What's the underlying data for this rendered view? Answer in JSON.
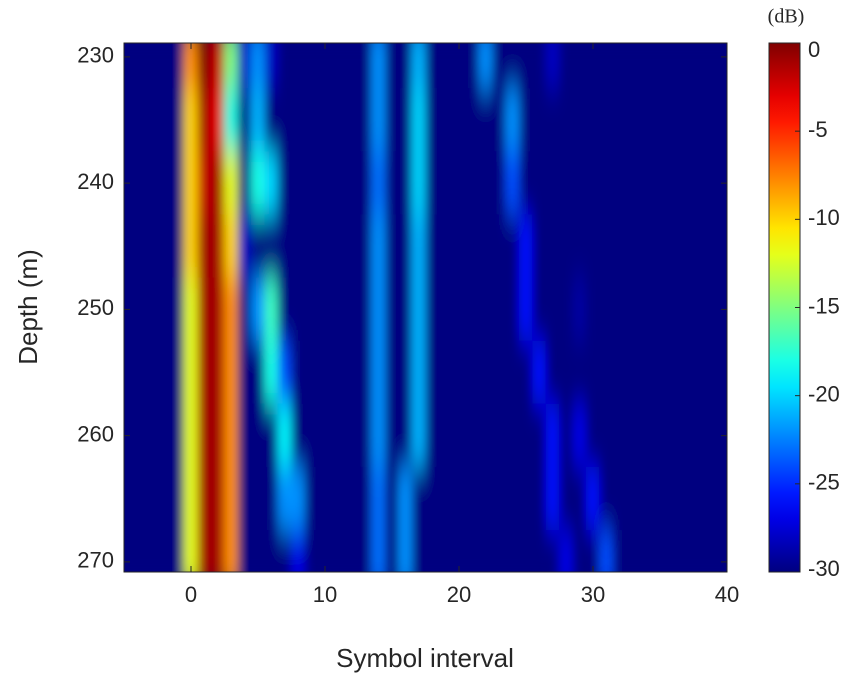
{
  "chart_data": {
    "type": "heatmap",
    "xlabel": "Symbol interval",
    "ylabel": "Depth (m)",
    "colorbar_label": "(dB)",
    "xlim": [
      -5,
      40
    ],
    "xticks": [
      0,
      10,
      20,
      30,
      40
    ],
    "ylim": [
      228.9,
      270.8
    ],
    "yticks": [
      230,
      240,
      250,
      260,
      270
    ],
    "y_reversed": true,
    "clim": [
      -30,
      0
    ],
    "cticks": [
      0,
      -5,
      -10,
      -15,
      -20,
      -25,
      -30
    ],
    "colormap": "jet",
    "x": [
      -5,
      -4,
      -3,
      -2,
      -1,
      0,
      1,
      2,
      3,
      4,
      5,
      6,
      7,
      8,
      9,
      10,
      11,
      12,
      13,
      14,
      15,
      16,
      17,
      18,
      19,
      20,
      21,
      22,
      23,
      24,
      25,
      26,
      27,
      28,
      29,
      30,
      31,
      32,
      33,
      34,
      35,
      36,
      37,
      38,
      39,
      40
    ],
    "y": [
      230,
      235,
      240,
      245,
      250,
      255,
      260,
      265,
      270
    ],
    "z": [
      [
        -30,
        -30,
        -30,
        -30,
        -30,
        -8,
        0,
        -2,
        -15,
        -28,
        -22,
        -28,
        -30,
        -30,
        -30,
        -30,
        -30,
        -30,
        -30,
        -22,
        -30,
        -30,
        -21,
        -30,
        -30,
        -30,
        -30,
        -22,
        -30,
        -30,
        -30,
        -30,
        -28,
        -30,
        -30,
        -30,
        -30,
        -30,
        -30,
        -30,
        -30,
        -30,
        -30,
        -30,
        -30,
        -30
      ],
      [
        -30,
        -30,
        -30,
        -30,
        -30,
        -10,
        -1,
        -3,
        -18,
        -30,
        -21,
        -30,
        -30,
        -30,
        -30,
        -30,
        -30,
        -30,
        -30,
        -22,
        -30,
        -30,
        -20,
        -30,
        -30,
        -30,
        -30,
        -30,
        -30,
        -22,
        -30,
        -30,
        -30,
        -30,
        -30,
        -30,
        -30,
        -30,
        -30,
        -30,
        -30,
        -30,
        -30,
        -30,
        -30,
        -30
      ],
      [
        -30,
        -30,
        -30,
        -30,
        -30,
        -10,
        -2,
        -1,
        -12,
        -30,
        -18,
        -20,
        -30,
        -30,
        -30,
        -30,
        -30,
        -30,
        -30,
        -23,
        -30,
        -30,
        -20,
        -30,
        -30,
        -30,
        -30,
        -30,
        -30,
        -24,
        -30,
        -30,
        -30,
        -30,
        -30,
        -30,
        -30,
        -30,
        -30,
        -30,
        -30,
        -30,
        -30,
        -30,
        -30,
        -30
      ],
      [
        -30,
        -30,
        -30,
        -30,
        -30,
        -10,
        -1,
        -1,
        -10,
        -28,
        -30,
        -30,
        -30,
        -30,
        -30,
        -30,
        -30,
        -30,
        -30,
        -22,
        -30,
        -30,
        -21,
        -30,
        -30,
        -30,
        -30,
        -30,
        -30,
        -30,
        -26,
        -30,
        -30,
        -30,
        -30,
        -30,
        -30,
        -30,
        -30,
        -30,
        -30,
        -30,
        -30,
        -30,
        -30,
        -30
      ],
      [
        -30,
        -30,
        -30,
        -30,
        -30,
        -12,
        -1,
        -1,
        -8,
        -30,
        -22,
        -17,
        -30,
        -30,
        -30,
        -30,
        -30,
        -30,
        -30,
        -22,
        -30,
        -30,
        -21,
        -30,
        -30,
        -30,
        -30,
        -30,
        -30,
        -30,
        -26,
        -30,
        -30,
        -30,
        -29,
        -30,
        -30,
        -30,
        -30,
        -30,
        -30,
        -30,
        -30,
        -30,
        -30,
        -30
      ],
      [
        -30,
        -30,
        -30,
        -30,
        -30,
        -12,
        -1,
        -1,
        -8,
        -30,
        -30,
        -18,
        -24,
        -30,
        -30,
        -30,
        -30,
        -30,
        -30,
        -22,
        -30,
        -30,
        -21,
        -30,
        -30,
        -30,
        -30,
        -30,
        -30,
        -30,
        -30,
        -26,
        -30,
        -30,
        -30,
        -30,
        -30,
        -30,
        -30,
        -30,
        -30,
        -30,
        -30,
        -30,
        -30,
        -30
      ],
      [
        -30,
        -30,
        -30,
        -30,
        -30,
        -12,
        -1,
        -1,
        -8,
        -30,
        -30,
        -30,
        -19,
        -30,
        -30,
        -30,
        -30,
        -30,
        -30,
        -22,
        -30,
        -30,
        -21,
        -30,
        -30,
        -30,
        -30,
        -30,
        -30,
        -30,
        -30,
        -30,
        -26,
        -30,
        -27,
        -30,
        -30,
        -30,
        -30,
        -30,
        -30,
        -30,
        -30,
        -30,
        -30,
        -30
      ],
      [
        -30,
        -30,
        -30,
        -30,
        -30,
        -12,
        -1,
        -1,
        -8,
        -30,
        -30,
        -30,
        -22,
        -22,
        -30,
        -30,
        -30,
        -30,
        -30,
        -23,
        -30,
        -22,
        -30,
        -30,
        -30,
        -30,
        -30,
        -30,
        -30,
        -30,
        -30,
        -30,
        -26,
        -30,
        -30,
        -26,
        -30,
        -30,
        -30,
        -30,
        -30,
        -30,
        -30,
        -30,
        -30,
        -30
      ],
      [
        -30,
        -30,
        -30,
        -30,
        -30,
        -12,
        -1,
        -1,
        -8,
        -30,
        -30,
        -30,
        -30,
        -27,
        -30,
        -30,
        -30,
        -30,
        -30,
        -23,
        -30,
        -22,
        -30,
        -30,
        -30,
        -30,
        -30,
        -30,
        -30,
        -30,
        -30,
        -30,
        -30,
        -27,
        -30,
        -30,
        -24,
        -30,
        -30,
        -30,
        -30,
        -30,
        -30,
        -30,
        -30,
        -30
      ]
    ]
  }
}
